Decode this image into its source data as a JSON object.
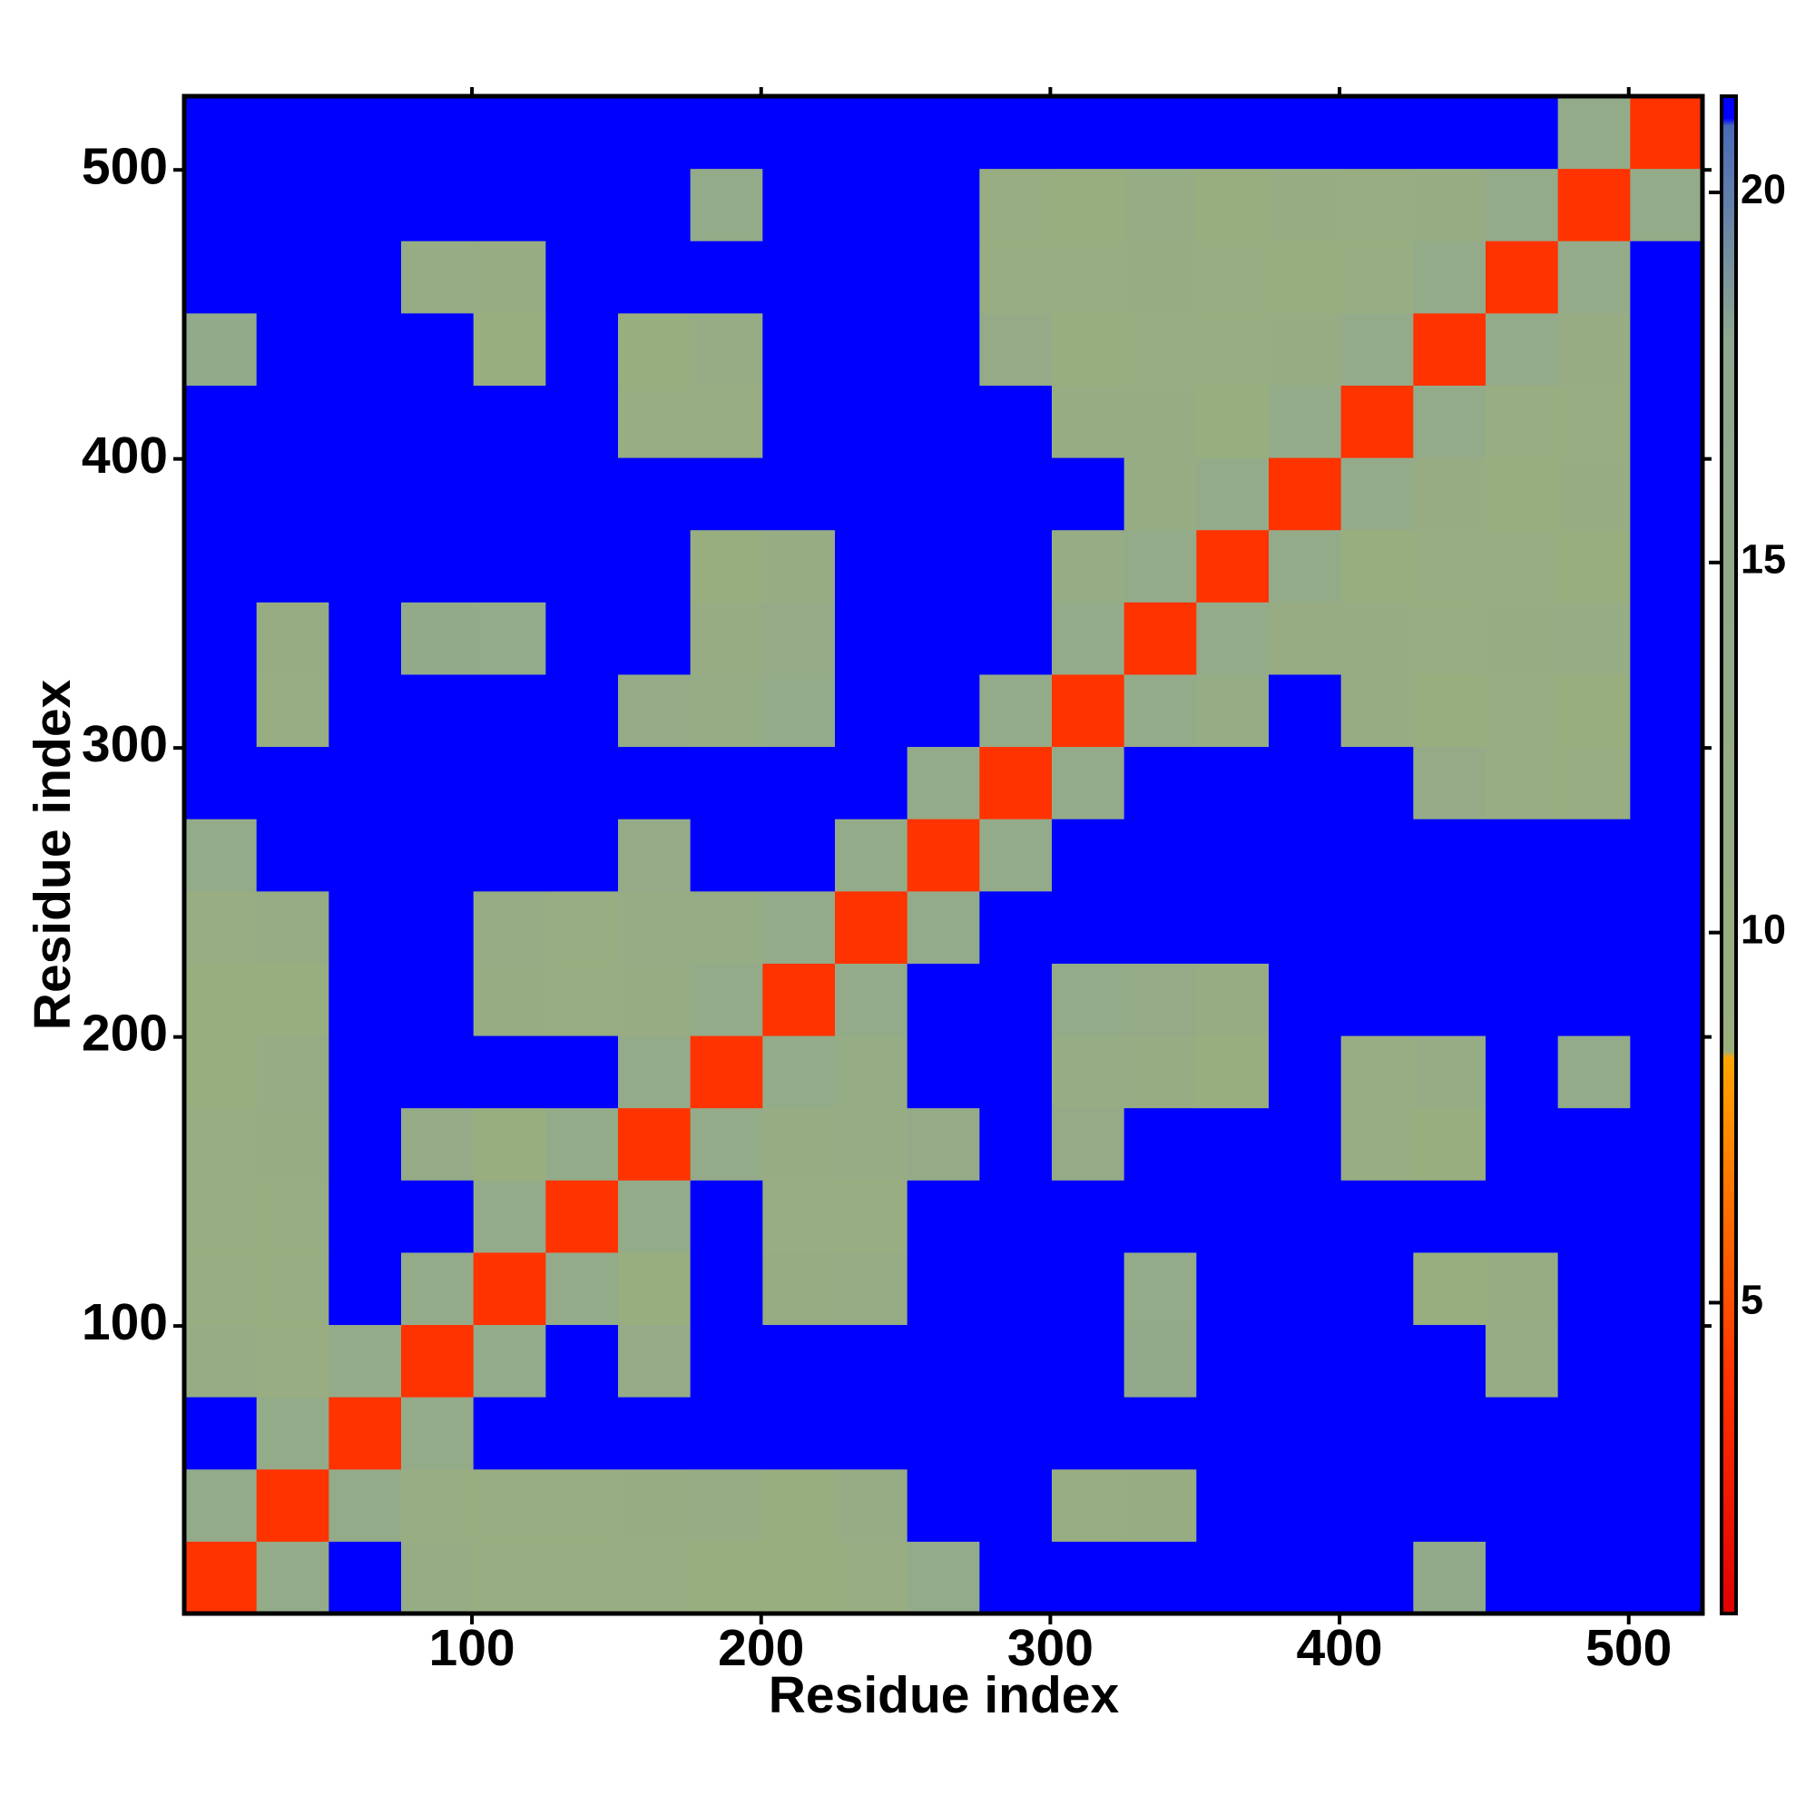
{
  "chart_data": {
    "type": "heatmap",
    "xlabel": "Residue index",
    "ylabel": "Residue index",
    "xbins": [
      0.5,
      25.5,
      50.5,
      75.5,
      100.5,
      125.5,
      150.5,
      175.5,
      200.5,
      225.5,
      250.5,
      275.5,
      300.5,
      325.5,
      350.5,
      375.5,
      400.5,
      425.5,
      450.5,
      475.5,
      500.5,
      525.5
    ],
    "ybins": [
      0.5,
      25.5,
      50.5,
      75.5,
      100.5,
      125.5,
      150.5,
      175.5,
      200.5,
      225.5,
      250.5,
      275.5,
      300.5,
      325.5,
      350.5,
      375.5,
      400.5,
      425.5,
      450.5,
      475.5,
      500.5,
      525.5
    ],
    "z": [
      [
        4,
        14,
        21,
        12,
        10,
        10,
        10,
        9,
        9,
        10,
        14,
        21,
        21,
        21,
        21,
        21,
        21,
        15,
        21,
        21,
        21
      ],
      [
        14,
        4,
        14,
        10,
        10,
        10,
        11,
        12,
        9,
        12,
        21,
        21,
        10,
        11,
        21,
        21,
        21,
        21,
        21,
        21,
        21
      ],
      [
        21,
        14,
        4,
        14,
        21,
        21,
        21,
        21,
        21,
        21,
        21,
        21,
        21,
        21,
        21,
        21,
        21,
        21,
        21,
        21,
        21
      ],
      [
        12,
        10,
        14,
        4,
        14,
        21,
        13,
        21,
        21,
        21,
        21,
        21,
        21,
        15,
        21,
        21,
        21,
        21,
        12,
        21,
        21
      ],
      [
        10,
        10,
        21,
        14,
        4,
        14,
        9,
        21,
        11,
        12,
        21,
        21,
        21,
        14,
        21,
        21,
        21,
        9,
        11,
        21,
        21
      ],
      [
        10,
        10,
        21,
        21,
        14,
        4,
        14,
        21,
        10,
        10,
        21,
        21,
        21,
        21,
        21,
        21,
        21,
        21,
        21,
        21,
        21
      ],
      [
        10,
        11,
        21,
        13,
        9,
        14,
        4,
        14,
        11,
        12,
        13,
        21,
        13,
        21,
        21,
        21,
        10,
        9,
        21,
        21,
        21
      ],
      [
        9,
        12,
        21,
        21,
        21,
        21,
        14,
        4,
        14,
        12,
        21,
        21,
        12,
        11,
        9,
        21,
        10,
        12,
        21,
        14,
        21
      ],
      [
        9,
        9,
        21,
        21,
        11,
        10,
        11,
        14,
        4,
        14,
        21,
        21,
        14,
        13,
        11,
        21,
        21,
        21,
        21,
        21,
        21
      ],
      [
        10,
        12,
        21,
        21,
        12,
        10,
        12,
        12,
        14,
        4,
        14,
        21,
        21,
        21,
        21,
        21,
        21,
        21,
        21,
        21,
        21
      ],
      [
        14,
        21,
        21,
        21,
        21,
        21,
        13,
        21,
        21,
        14,
        4,
        14,
        21,
        21,
        21,
        21,
        21,
        21,
        21,
        21,
        21
      ],
      [
        21,
        21,
        21,
        21,
        21,
        21,
        21,
        21,
        21,
        21,
        14,
        4,
        14,
        21,
        21,
        21,
        21,
        13,
        10,
        10,
        21
      ],
      [
        21,
        10,
        21,
        21,
        21,
        21,
        13,
        12,
        14,
        21,
        21,
        14,
        4,
        14,
        12,
        21,
        11,
        9,
        10,
        9,
        21
      ],
      [
        21,
        11,
        21,
        15,
        14,
        21,
        21,
        11,
        13,
        21,
        21,
        21,
        14,
        4,
        14,
        11,
        11,
        10,
        11,
        12,
        21
      ],
      [
        21,
        21,
        21,
        21,
        21,
        21,
        21,
        9,
        11,
        21,
        21,
        21,
        12,
        14,
        4,
        14,
        9,
        10,
        10,
        9,
        21
      ],
      [
        21,
        21,
        21,
        21,
        21,
        21,
        21,
        21,
        21,
        21,
        21,
        21,
        21,
        11,
        14,
        4,
        14,
        11,
        9,
        11,
        21
      ],
      [
        21,
        21,
        21,
        21,
        21,
        21,
        10,
        10,
        21,
        21,
        21,
        21,
        11,
        11,
        9,
        14,
        4,
        14,
        10,
        10,
        21
      ],
      [
        15,
        21,
        21,
        21,
        9,
        21,
        9,
        12,
        21,
        21,
        21,
        13,
        9,
        10,
        10,
        11,
        14,
        4,
        14,
        11,
        21
      ],
      [
        21,
        21,
        21,
        12,
        11,
        21,
        21,
        21,
        21,
        21,
        21,
        10,
        10,
        11,
        10,
        9,
        10,
        14,
        4,
        14,
        21
      ],
      [
        21,
        21,
        21,
        21,
        21,
        21,
        21,
        14,
        21,
        21,
        21,
        10,
        9,
        12,
        9,
        11,
        10,
        11,
        14,
        4,
        14
      ],
      [
        21,
        21,
        21,
        21,
        21,
        21,
        21,
        21,
        21,
        21,
        21,
        21,
        21,
        21,
        21,
        21,
        21,
        21,
        21,
        14,
        4
      ]
    ],
    "xlim": [
      0.5,
      525.5
    ],
    "ylim": [
      0.5,
      525.5
    ],
    "xticks": [
      100,
      200,
      300,
      400,
      500
    ],
    "yticks": [
      100,
      200,
      300,
      400,
      500
    ],
    "zlim": [
      0.8,
      21.3
    ],
    "zticks": [
      5,
      10,
      15,
      20
    ],
    "colorscale": [
      [
        0.8,
        "#e00000"
      ],
      [
        4,
        "#ff3300"
      ],
      [
        8.3,
        "#ffa500"
      ],
      [
        8.4,
        "#9aae7e"
      ],
      [
        18,
        "#8fa890"
      ],
      [
        20.9,
        "#4a6ab8"
      ],
      [
        21,
        "#0000ff"
      ],
      [
        21.3,
        "#0000ff"
      ]
    ],
    "grid": false
  }
}
